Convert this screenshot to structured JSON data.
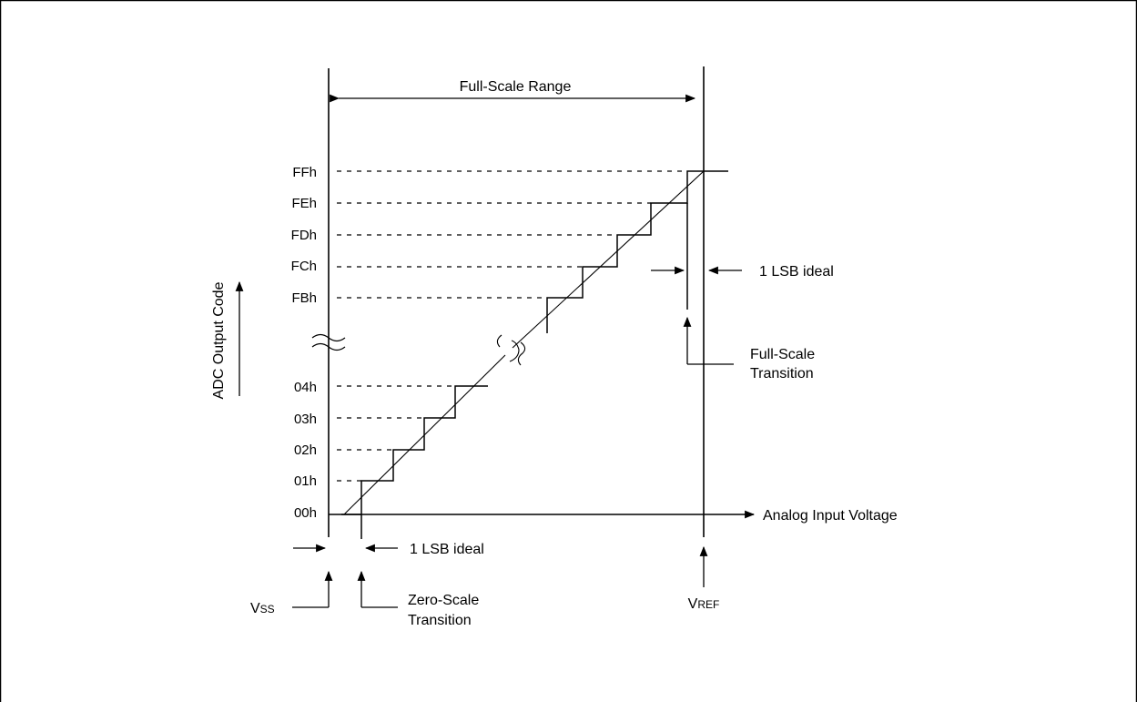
{
  "full_scale_range": "Full-Scale Range",
  "y_axis_label": "ADC Output Code",
  "x_axis_label": "Analog Input Voltage",
  "codes_top": [
    "FBh",
    "FCh",
    "FDh",
    "FEh",
    "FFh"
  ],
  "codes_bottom": [
    "00h",
    "01h",
    "02h",
    "03h",
    "04h"
  ],
  "lsb_ideal_label": "1 LSB ideal",
  "full_scale_transition": [
    "Full-Scale",
    "Transition"
  ],
  "zero_scale_transition": [
    "Zero-Scale",
    "Transition"
  ],
  "vss": {
    "main": "V",
    "sub": "SS"
  },
  "vref": {
    "main": "V",
    "sub": "REF"
  }
}
